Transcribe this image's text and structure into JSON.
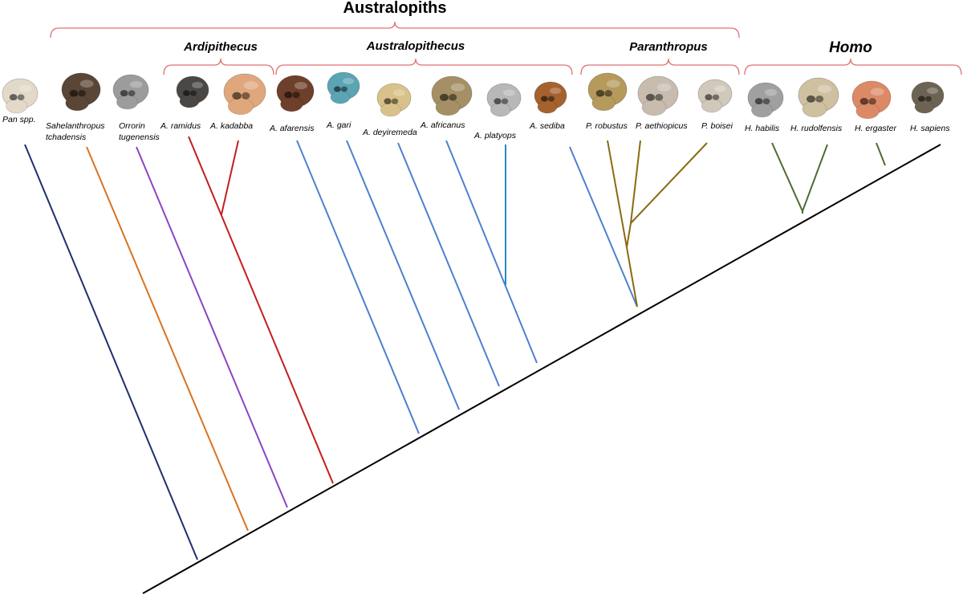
{
  "diagram": {
    "top_group": {
      "label": "Australopiths"
    },
    "groups": [
      {
        "id": "ardi",
        "label": "Ardipithecus",
        "style": "group"
      },
      {
        "id": "australo",
        "label": "Australopithecus",
        "style": "group"
      },
      {
        "id": "paran",
        "label": "Paranthropus",
        "style": "group"
      },
      {
        "id": "homo",
        "label": "Homo",
        "style": "homo"
      }
    ],
    "taxa": [
      {
        "id": "pan",
        "lines": [
          "Pan spp."
        ],
        "color": "#1f2f6e",
        "skull": "#e2d9c9"
      },
      {
        "id": "sahel",
        "lines": [
          "Sahelanthropus",
          "tchadensis"
        ],
        "color": "#d9731f",
        "skull": "#5a4636"
      },
      {
        "id": "orrorin",
        "lines": [
          "Orrorin",
          "tugenensis"
        ],
        "color": "#8a45c2",
        "skull": "#9c9c9c"
      },
      {
        "id": "ramidus",
        "lines": [
          "A. ramidus"
        ],
        "color": "#c41e1e",
        "skull": "#4a4744"
      },
      {
        "id": "kadabba",
        "lines": [
          "A. kadabba"
        ],
        "color": "#c41e1e",
        "skull": "#e0a77d"
      },
      {
        "id": "afarensis",
        "lines": [
          "A. afarensis"
        ],
        "color": "#4f7fcf",
        "skull": "#6e3f2a"
      },
      {
        "id": "gari",
        "lines": [
          "A. gari"
        ],
        "color": "#4f7fcf",
        "skull": "#5ba4b4"
      },
      {
        "id": "deyiremeda",
        "lines": [
          "A. deyiremeda"
        ],
        "color": "#4f7fcf",
        "skull": "#d9c28a"
      },
      {
        "id": "africanus",
        "lines": [
          "A. africanus"
        ],
        "color": "#4f7fcf",
        "skull": "#a59065"
      },
      {
        "id": "platyops",
        "lines": [
          "A. platyops"
        ],
        "color": "#2b86c4",
        "skull": "#b8b8b8"
      },
      {
        "id": "sediba",
        "lines": [
          "A. sediba"
        ],
        "color": "#4f7fcf",
        "skull": "#a5612e"
      },
      {
        "id": "robustus",
        "lines": [
          "P. robustus"
        ],
        "color": "#8a6a10",
        "skull": "#b59a5c"
      },
      {
        "id": "aethiopicus",
        "lines": [
          "P. aethiopicus"
        ],
        "color": "#8a6a10",
        "skull": "#c7bcae"
      },
      {
        "id": "boisei",
        "lines": [
          "P. boisei"
        ],
        "color": "#8a6a10",
        "skull": "#d0c8ba"
      },
      {
        "id": "habilis",
        "lines": [
          "H. habilis"
        ],
        "color": "#4e6b34",
        "skull": "#a0a0a0"
      },
      {
        "id": "rudolfensis",
        "lines": [
          "H. rudolfensis"
        ],
        "color": "#4e6b34",
        "skull": "#cfc0a0"
      },
      {
        "id": "ergaster",
        "lines": [
          "H. ergaster"
        ],
        "color": "#4e6b34",
        "skull": "#dc8a66"
      },
      {
        "id": "sapiens",
        "lines": [
          "H. sapiens"
        ],
        "color": "#4e6b34",
        "skull": "#6d6354"
      }
    ],
    "colors": {
      "bracket": "#e07070",
      "trunk": "#000000"
    }
  }
}
